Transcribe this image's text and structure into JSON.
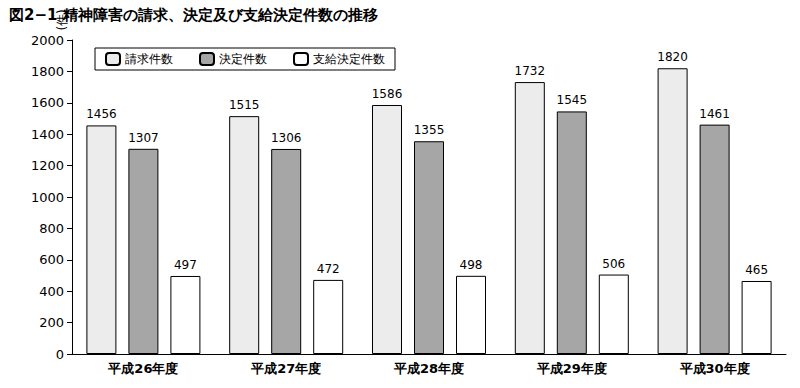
{
  "chart_data": {
    "type": "bar",
    "title": "図2−1 精神障害の請求、決定及び支給決定件数の推移",
    "y_label": "(件)",
    "categories": [
      "平成26年度",
      "平成27年度",
      "平成28年度",
      "平成29年度",
      "平成30年度"
    ],
    "series": [
      {
        "name": "請求件数",
        "color": "#ececec",
        "values": [
          1456,
          1515,
          1586,
          1732,
          1820
        ]
      },
      {
        "name": "決定件数",
        "color": "#a6a6a6",
        "values": [
          1307,
          1306,
          1355,
          1545,
          1461
        ]
      },
      {
        "name": "支給決定件数",
        "color": "#ffffff",
        "values": [
          497,
          472,
          498,
          506,
          465
        ]
      }
    ],
    "ylim": [
      0,
      2000
    ],
    "yticks": [
      0,
      200,
      400,
      600,
      800,
      1000,
      1200,
      1400,
      1600,
      1800,
      2000
    ],
    "grid": false,
    "legend": "upper left",
    "data_labels": true
  }
}
